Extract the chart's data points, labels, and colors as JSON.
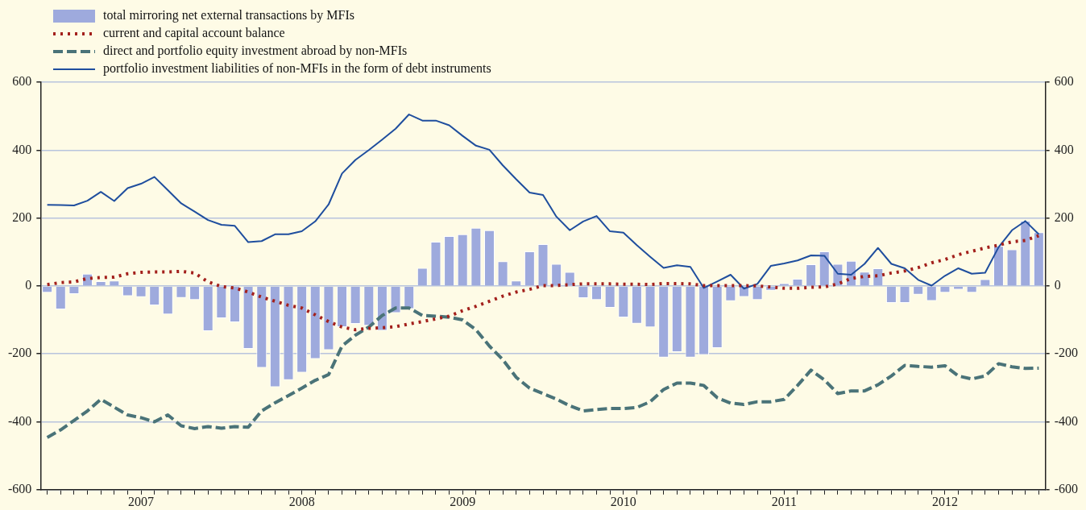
{
  "chart_data": {
    "type": "bar",
    "categories": [
      null,
      null,
      null,
      null,
      null,
      null,
      null,
      "2007",
      null,
      null,
      null,
      null,
      null,
      null,
      null,
      null,
      null,
      null,
      null,
      "2008",
      null,
      null,
      null,
      null,
      null,
      null,
      null,
      null,
      null,
      null,
      null,
      "2009",
      null,
      null,
      null,
      null,
      null,
      null,
      null,
      null,
      null,
      null,
      null,
      "2010",
      null,
      null,
      null,
      null,
      null,
      null,
      null,
      null,
      null,
      null,
      null,
      "2011",
      null,
      null,
      null,
      null,
      null,
      null,
      null,
      null,
      null,
      null,
      null,
      "2012",
      null,
      null,
      null,
      null,
      null,
      null,
      null
    ],
    "series": [
      {
        "name": "total mirroring net external transactions by MFIs",
        "type": "bar",
        "color": "#9eaadd",
        "values": [
          -20,
          -69,
          -24,
          36,
          14,
          16,
          -30,
          -33,
          -57,
          -84,
          -35,
          -41,
          -133,
          -95,
          -107,
          -185,
          -241,
          -298,
          -277,
          -255,
          -215,
          -189,
          -121,
          -112,
          -117,
          -132,
          -80,
          -68,
          53,
          130,
          147,
          152,
          171,
          164,
          73,
          16,
          102,
          123,
          65,
          41,
          -36,
          -41,
          -64,
          -93,
          -111,
          -122,
          -211,
          -195,
          -211,
          -203,
          -183,
          -45,
          -32,
          -41,
          -14,
          8,
          21,
          64,
          102,
          65,
          74,
          42,
          52,
          -50,
          -50,
          -26,
          -44,
          -20,
          -11,
          -20,
          20,
          118,
          108,
          192,
          158
        ]
      },
      {
        "name": "current and capital account balance",
        "type": "line",
        "line_style": "dotted",
        "color": "#a3201c",
        "values": [
          4,
          10,
          12,
          22,
          25,
          26,
          36,
          40,
          41,
          41,
          43,
          38,
          12,
          -2,
          -6,
          -18,
          -33,
          -45,
          -57,
          -65,
          -85,
          -105,
          -121,
          -129,
          -125,
          -123,
          -120,
          -112,
          -105,
          -97,
          -89,
          -73,
          -60,
          -45,
          -30,
          -18,
          -10,
          1,
          1,
          4,
          6,
          6,
          6,
          5,
          5,
          4,
          7,
          7,
          6,
          1,
          1,
          1,
          1,
          0,
          -3,
          -7,
          -7,
          -4,
          -3,
          6,
          22,
          28,
          30,
          38,
          44,
          54,
          68,
          78,
          92,
          102,
          112,
          120,
          130,
          134,
          148
        ]
      },
      {
        "name": "direct and portfolio equity investment abroad by non-MFIs",
        "type": "line",
        "line_style": "dashed",
        "color": "#4a7378",
        "values": [
          -446,
          -424,
          -396,
          -368,
          -334,
          -357,
          -380,
          -388,
          -400,
          -380,
          -412,
          -420,
          -414,
          -419,
          -414,
          -416,
          -368,
          -344,
          -323,
          -301,
          -278,
          -261,
          -177,
          -145,
          -121,
          -87,
          -65,
          -65,
          -87,
          -89,
          -92,
          -100,
          -129,
          -177,
          -217,
          -269,
          -301,
          -317,
          -333,
          -353,
          -368,
          -364,
          -361,
          -361,
          -358,
          -341,
          -305,
          -286,
          -286,
          -293,
          -329,
          -345,
          -349,
          -341,
          -341,
          -334,
          -293,
          -248,
          -277,
          -317,
          -309,
          -309,
          -291,
          -265,
          -234,
          -237,
          -239,
          -235,
          -265,
          -274,
          -265,
          -229,
          -238,
          -243,
          -242
        ]
      },
      {
        "name": "portfolio investment liabilities of non-MFIs in the form of debt instruments",
        "type": "line",
        "line_style": "solid",
        "color": "#1f4e9e",
        "values": [
          239,
          238,
          237,
          251,
          277,
          250,
          288,
          301,
          321,
          282,
          243,
          219,
          194,
          180,
          177,
          129,
          132,
          152,
          152,
          161,
          190,
          240,
          331,
          371,
          400,
          431,
          463,
          505,
          487,
          487,
          473,
          442,
          413,
          401,
          355,
          314,
          275,
          268,
          204,
          164,
          190,
          206,
          161,
          157,
          120,
          86,
          53,
          61,
          56,
          -6,
          13,
          33,
          -8,
          6,
          59,
          66,
          75,
          90,
          89,
          36,
          33,
          65,
          112,
          65,
          52,
          18,
          1,
          30,
          52,
          36,
          39,
          114,
          164,
          191,
          152
        ]
      }
    ],
    "ylim": [
      -600,
      600
    ],
    "yticks": [
      -600,
      -400,
      -200,
      0,
      200,
      400,
      600
    ],
    "y2lim": [
      -600,
      600
    ],
    "y2ticks": [
      -600,
      -400,
      -200,
      0,
      200,
      400,
      600
    ],
    "grid": "y",
    "legend": "top left",
    "marker": "none"
  }
}
